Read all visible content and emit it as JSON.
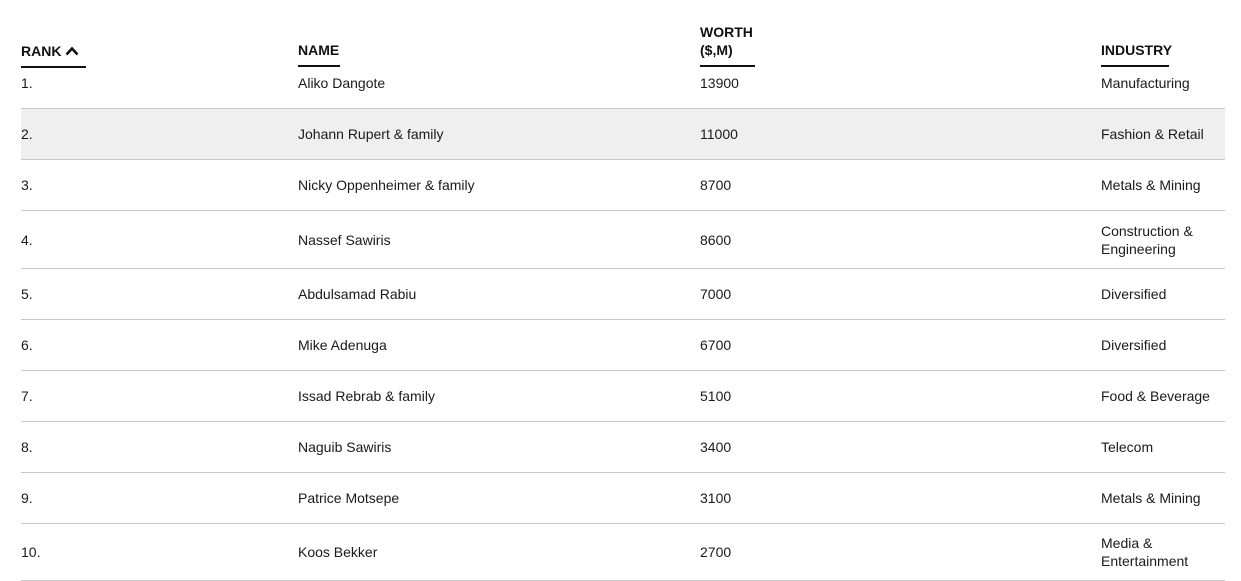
{
  "table": {
    "headers": {
      "rank": "RANK",
      "name": "NAME",
      "worth": "WORTH\n($,M)",
      "industry": "INDUSTRY"
    },
    "sort_icon": "chevron-up-icon",
    "highlight_color": "#efefef",
    "rows": [
      {
        "rank": "1.",
        "name": "Aliko Dangote",
        "worth": "13900",
        "industry": "Manufacturing"
      },
      {
        "rank": "2.",
        "name": "Johann Rupert & family",
        "worth": "11000",
        "industry": "Fashion & Retail"
      },
      {
        "rank": "3.",
        "name": "Nicky Oppenheimer & family",
        "worth": "8700",
        "industry": "Metals & Mining"
      },
      {
        "rank": "4.",
        "name": "Nassef Sawiris",
        "worth": "8600",
        "industry": "Construction & Engineering"
      },
      {
        "rank": "5.",
        "name": "Abdulsamad Rabiu",
        "worth": "7000",
        "industry": "Diversified"
      },
      {
        "rank": "6.",
        "name": "Mike Adenuga",
        "worth": "6700",
        "industry": "Diversified"
      },
      {
        "rank": "7.",
        "name": "Issad Rebrab & family",
        "worth": "5100",
        "industry": "Food & Beverage"
      },
      {
        "rank": "8.",
        "name": "Naguib Sawiris",
        "worth": "3400",
        "industry": "Telecom"
      },
      {
        "rank": "9.",
        "name": "Patrice Motsepe",
        "worth": "3100",
        "industry": "Metals & Mining"
      },
      {
        "rank": "10.",
        "name": "Koos Bekker",
        "worth": "2700",
        "industry": "Media & Entertainment"
      }
    ]
  }
}
